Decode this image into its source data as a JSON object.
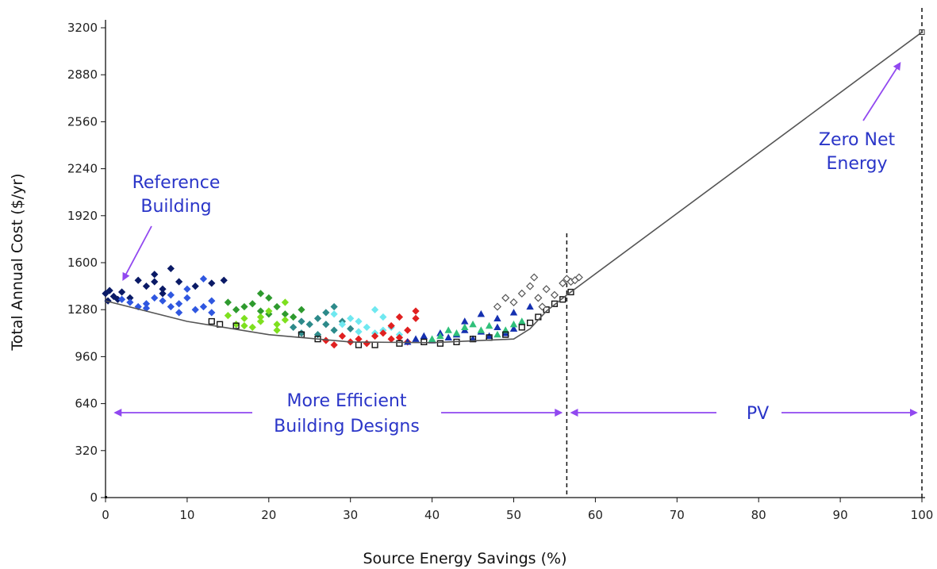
{
  "chart_data": {
    "type": "scatter",
    "title": "",
    "xlabel": "Source Energy Savings (%)",
    "ylabel": "Total Annual Cost ($/yr)",
    "xlim": [
      0,
      100
    ],
    "ylim": [
      0,
      3200
    ],
    "xticks": [
      0,
      10,
      20,
      30,
      40,
      50,
      60,
      70,
      80,
      90,
      100
    ],
    "yticks": [
      0,
      320,
      640,
      960,
      1280,
      1600,
      1920,
      2240,
      2560,
      2880,
      3200
    ],
    "grid": false,
    "legend": "none",
    "frontier_line": {
      "x": [
        0,
        10,
        20,
        30,
        40,
        50,
        52,
        54,
        56.5,
        100
      ],
      "y": [
        1340,
        1200,
        1110,
        1060,
        1055,
        1080,
        1150,
        1270,
        1380,
        3170
      ]
    },
    "reference_lines_x": [
      56.5,
      100
    ],
    "series": [
      {
        "color": "#0a1a66",
        "marker": "diamond",
        "points": [
          [
            0,
            1390
          ],
          [
            0.5,
            1410
          ],
          [
            1,
            1370
          ],
          [
            2,
            1400
          ],
          [
            3,
            1360
          ],
          [
            4,
            1480
          ],
          [
            5,
            1440
          ],
          [
            6,
            1470
          ],
          [
            6,
            1520
          ],
          [
            7,
            1420
          ],
          [
            7,
            1390
          ],
          [
            8,
            1560
          ],
          [
            9,
            1470
          ],
          [
            11,
            1440
          ],
          [
            13,
            1460
          ],
          [
            14.5,
            1480
          ],
          [
            0.3,
            1340
          ],
          [
            1.5,
            1350
          ]
        ]
      },
      {
        "color": "#2f57e0",
        "marker": "diamond",
        "points": [
          [
            2,
            1350
          ],
          [
            3,
            1330
          ],
          [
            4,
            1300
          ],
          [
            5,
            1320
          ],
          [
            6,
            1360
          ],
          [
            7,
            1340
          ],
          [
            8,
            1380
          ],
          [
            8,
            1300
          ],
          [
            9,
            1320
          ],
          [
            10,
            1360
          ],
          [
            10,
            1420
          ],
          [
            11,
            1280
          ],
          [
            12,
            1300
          ],
          [
            12,
            1490
          ],
          [
            13,
            1340
          ],
          [
            13,
            1260
          ],
          [
            5,
            1290
          ],
          [
            9,
            1260
          ]
        ]
      },
      {
        "color": "#2e9a2e",
        "marker": "diamond",
        "points": [
          [
            15,
            1330
          ],
          [
            16,
            1280
          ],
          [
            17,
            1300
          ],
          [
            18,
            1320
          ],
          [
            19,
            1270
          ],
          [
            19,
            1390
          ],
          [
            20,
            1250
          ],
          [
            20,
            1360
          ],
          [
            21,
            1300
          ],
          [
            22,
            1250
          ],
          [
            23,
            1230
          ],
          [
            24,
            1280
          ]
        ]
      },
      {
        "color": "#7ee01f",
        "marker": "diamond",
        "points": [
          [
            15,
            1240
          ],
          [
            16,
            1180
          ],
          [
            17,
            1220
          ],
          [
            17,
            1170
          ],
          [
            18,
            1160
          ],
          [
            19,
            1230
          ],
          [
            19,
            1200
          ],
          [
            20,
            1270
          ],
          [
            21,
            1180
          ],
          [
            21,
            1140
          ],
          [
            22,
            1210
          ],
          [
            22,
            1330
          ]
        ]
      },
      {
        "color": "#2d8a8a",
        "marker": "diamond",
        "points": [
          [
            23,
            1160
          ],
          [
            24,
            1200
          ],
          [
            25,
            1180
          ],
          [
            26,
            1220
          ],
          [
            27,
            1260
          ],
          [
            28,
            1300
          ],
          [
            29,
            1200
          ],
          [
            30,
            1150
          ],
          [
            24,
            1120
          ],
          [
            26,
            1110
          ],
          [
            28,
            1140
          ],
          [
            27,
            1180
          ]
        ]
      },
      {
        "color": "#6fe8f0",
        "marker": "diamond",
        "points": [
          [
            28,
            1250
          ],
          [
            29,
            1180
          ],
          [
            30,
            1220
          ],
          [
            31,
            1200
          ],
          [
            32,
            1160
          ],
          [
            33,
            1280
          ],
          [
            34,
            1140
          ],
          [
            35,
            1160
          ],
          [
            31,
            1130
          ],
          [
            33,
            1120
          ],
          [
            36,
            1110
          ],
          [
            34,
            1230
          ]
        ]
      },
      {
        "color": "#e02020",
        "marker": "diamond",
        "points": [
          [
            27,
            1070
          ],
          [
            28,
            1040
          ],
          [
            29,
            1100
          ],
          [
            30,
            1060
          ],
          [
            31,
            1080
          ],
          [
            32,
            1050
          ],
          [
            33,
            1100
          ],
          [
            34,
            1120
          ],
          [
            35,
            1080
          ],
          [
            36,
            1090
          ],
          [
            37,
            1140
          ],
          [
            38,
            1220
          ],
          [
            38,
            1270
          ],
          [
            36,
            1230
          ],
          [
            35,
            1170
          ],
          [
            37,
            1060
          ]
        ]
      },
      {
        "color": "#1530b0",
        "marker": "triangle",
        "points": [
          [
            37,
            1060
          ],
          [
            38,
            1080
          ],
          [
            39,
            1100
          ],
          [
            40,
            1070
          ],
          [
            41,
            1120
          ],
          [
            42,
            1090
          ],
          [
            43,
            1110
          ],
          [
            44,
            1140
          ],
          [
            45,
            1080
          ],
          [
            46,
            1130
          ],
          [
            47,
            1100
          ],
          [
            48,
            1160
          ],
          [
            49,
            1120
          ],
          [
            50,
            1150
          ],
          [
            44,
            1200
          ],
          [
            46,
            1250
          ],
          [
            48,
            1220
          ],
          [
            50,
            1260
          ],
          [
            52,
            1300
          ]
        ]
      },
      {
        "color": "#30c07a",
        "marker": "triangle",
        "points": [
          [
            40,
            1080
          ],
          [
            41,
            1100
          ],
          [
            42,
            1140
          ],
          [
            43,
            1120
          ],
          [
            44,
            1160
          ],
          [
            45,
            1180
          ],
          [
            46,
            1140
          ],
          [
            47,
            1170
          ],
          [
            48,
            1110
          ],
          [
            49,
            1140
          ],
          [
            50,
            1180
          ],
          [
            51,
            1200
          ]
        ]
      },
      {
        "color": "#111111",
        "marker": "square",
        "points": [
          [
            13,
            1200
          ],
          [
            14,
            1180
          ],
          [
            16,
            1170
          ],
          [
            24,
            1110
          ],
          [
            26,
            1080
          ],
          [
            31,
            1040
          ],
          [
            33,
            1040
          ],
          [
            36,
            1050
          ],
          [
            39,
            1060
          ],
          [
            41,
            1050
          ],
          [
            43,
            1060
          ],
          [
            45,
            1080
          ],
          [
            47,
            1090
          ],
          [
            49,
            1110
          ],
          [
            51,
            1160
          ],
          [
            52,
            1190
          ],
          [
            53,
            1230
          ],
          [
            54,
            1280
          ],
          [
            55,
            1320
          ],
          [
            56,
            1350
          ],
          [
            57,
            1400
          ]
        ]
      },
      {
        "color": "#555555",
        "marker": "open-diamond",
        "points": [
          [
            48,
            1300
          ],
          [
            49,
            1360
          ],
          [
            50,
            1330
          ],
          [
            51,
            1390
          ],
          [
            52,
            1440
          ],
          [
            52.5,
            1500
          ],
          [
            53,
            1360
          ],
          [
            54,
            1420
          ],
          [
            55,
            1380
          ],
          [
            56,
            1460
          ],
          [
            56.5,
            1490
          ],
          [
            57,
            1470
          ],
          [
            57.5,
            1480
          ],
          [
            58,
            1500
          ],
          [
            53.5,
            1300
          ]
        ]
      }
    ],
    "annotations": [
      {
        "lines": [
          "Reference",
          "Building"
        ],
        "points_to": [
          1,
          1480
        ]
      },
      {
        "lines": [
          "Zero Net",
          "Energy"
        ],
        "points_to": [
          97.5,
          2980
        ]
      },
      {
        "lines": [
          "More Efficient",
          "Building Designs"
        ],
        "span": [
          1,
          56
        ]
      },
      {
        "lines": [
          "PV"
        ],
        "span": [
          57,
          99.5
        ]
      }
    ]
  },
  "colors": {
    "annotation_text": "#2a35c8",
    "annotation_arrow": "#9148f0",
    "frontier": "#555555",
    "axis": "#111111"
  }
}
